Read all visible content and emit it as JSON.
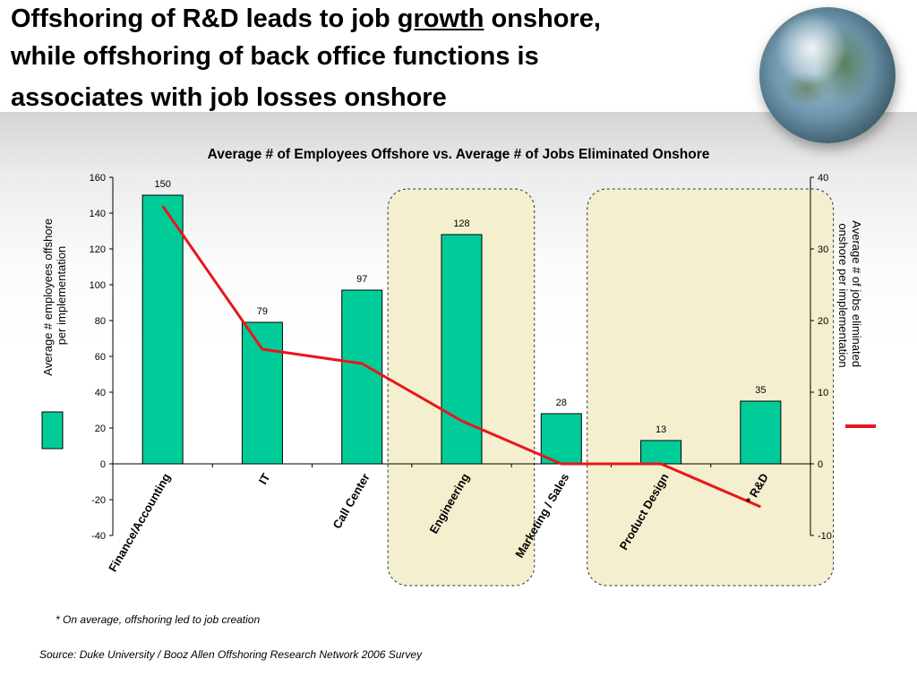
{
  "headline": {
    "line1_before": "Offshoring of R&D leads to job ",
    "line1_emph": "growth",
    "line1_after": " onshore,",
    "line2": "while offshoring of back office functions is",
    "line3": "associates with job losses onshore"
  },
  "chart_data": {
    "type": "bar",
    "title": "Average # of Employees Offshore vs. Average # of Jobs Eliminated Onshore",
    "categories": [
      "Finance/Accounting",
      "IT",
      "Call Center",
      "Engineering",
      "Marketing / Sales",
      "Product Design",
      "* R&D"
    ],
    "series": [
      {
        "type": "bar",
        "axis": "left",
        "color": "#00cc99",
        "values": [
          150,
          79,
          97,
          128,
          28,
          13,
          35
        ],
        "data_labels": [
          "150",
          "79",
          "97",
          "128",
          "28",
          "13",
          "35"
        ]
      },
      {
        "type": "line",
        "axis": "right",
        "color": "#e8161b",
        "values": [
          36,
          16,
          14,
          6,
          0,
          0,
          -6
        ]
      }
    ],
    "ylabel": "Average # employees offshore per implementation",
    "ylabel2": "Average # of jobs eliminated onshore per implementation",
    "ylim": [
      -40,
      160
    ],
    "yticks": [
      "160",
      "140",
      "120",
      "100",
      "80",
      "60",
      "40",
      "20",
      "0",
      "-20",
      "-40"
    ],
    "y2lim": [
      -10,
      40
    ],
    "y2ticks": [
      "40",
      "30",
      "20",
      "10",
      "0",
      "-10"
    ],
    "highlighted_categories": [
      [
        "Engineering"
      ],
      [
        "Product Design",
        "* R&D"
      ]
    ],
    "highlight_fill": "#f3efcf",
    "legend": "left-and-right",
    "grid": false
  },
  "footnote": "* On average, offshoring led to job creation",
  "source": "Source:  Duke University / Booz Allen Offshoring Research Network 2006 Survey"
}
